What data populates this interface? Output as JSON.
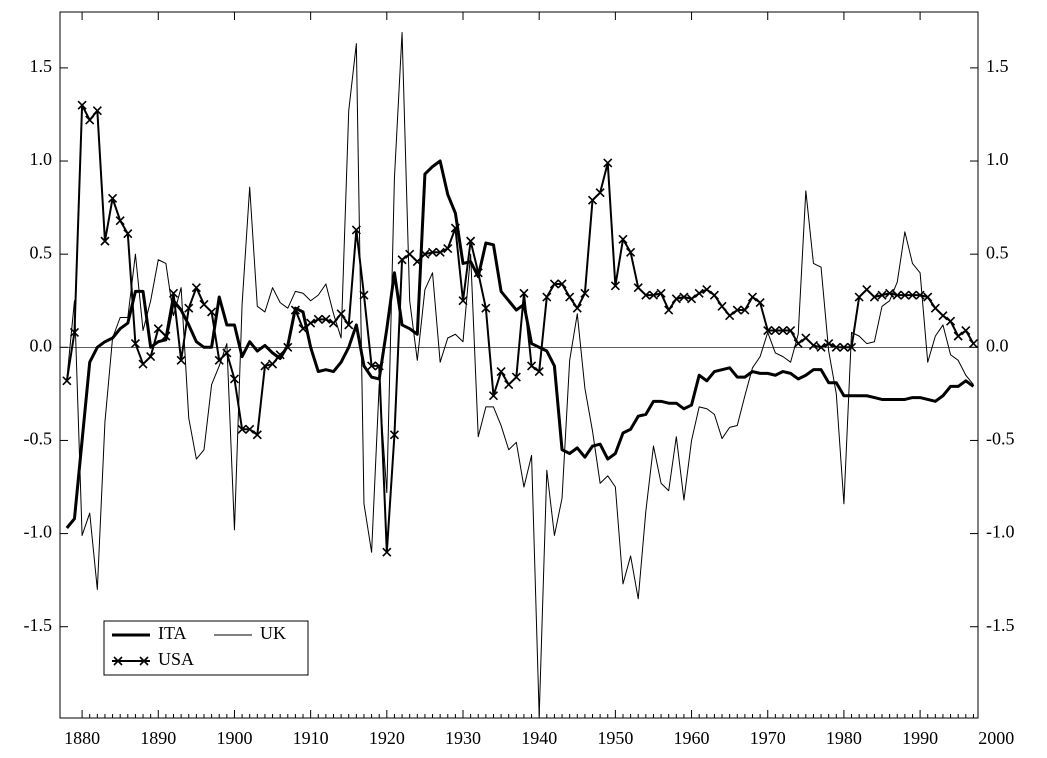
{
  "chart_data": {
    "type": "line",
    "x": [
      1878,
      1879,
      1880,
      1881,
      1882,
      1883,
      1884,
      1885,
      1886,
      1887,
      1888,
      1889,
      1890,
      1891,
      1892,
      1893,
      1894,
      1895,
      1896,
      1897,
      1898,
      1899,
      1900,
      1901,
      1902,
      1903,
      1904,
      1905,
      1906,
      1907,
      1908,
      1909,
      1910,
      1911,
      1912,
      1913,
      1914,
      1915,
      1916,
      1917,
      1918,
      1919,
      1920,
      1921,
      1922,
      1923,
      1924,
      1925,
      1926,
      1927,
      1928,
      1929,
      1930,
      1931,
      1932,
      1933,
      1934,
      1935,
      1936,
      1937,
      1938,
      1939,
      1940,
      1941,
      1942,
      1943,
      1944,
      1945,
      1946,
      1947,
      1948,
      1949,
      1950,
      1951,
      1952,
      1953,
      1954,
      1955,
      1956,
      1957,
      1958,
      1959,
      1960,
      1961,
      1962,
      1963,
      1964,
      1965,
      1966,
      1967,
      1968,
      1969,
      1970,
      1971,
      1972,
      1973,
      1974,
      1975,
      1976,
      1977,
      1978,
      1979,
      1980,
      1981,
      1982,
      1983,
      1984,
      1985,
      1986,
      1987,
      1988,
      1989,
      1990,
      1991,
      1992,
      1993,
      1994,
      1995,
      1996,
      1997
    ],
    "series": [
      {
        "name": "ITA",
        "color": "#000000",
        "linewidth": 3,
        "marker": "none",
        "values": [
          -0.97,
          -0.92,
          -0.5,
          -0.08,
          0.0,
          0.03,
          0.05,
          0.1,
          0.13,
          0.3,
          0.3,
          0.0,
          0.03,
          0.04,
          0.25,
          0.2,
          0.12,
          0.03,
          0.0,
          0.0,
          0.27,
          0.12,
          0.12,
          -0.05,
          0.03,
          -0.02,
          0.01,
          -0.03,
          -0.06,
          0.01,
          0.21,
          0.19,
          0.0,
          -0.13,
          -0.12,
          -0.13,
          -0.08,
          0.0,
          0.12,
          -0.1,
          -0.16,
          -0.17,
          0.1,
          0.4,
          0.12,
          0.1,
          0.07,
          0.93,
          0.97,
          1.0,
          0.82,
          0.72,
          0.45,
          0.46,
          0.38,
          0.56,
          0.55,
          0.3,
          0.25,
          0.2,
          0.23,
          0.02,
          0.0,
          -0.02,
          -0.1,
          -0.55,
          -0.57,
          -0.54,
          -0.59,
          -0.53,
          -0.52,
          -0.6,
          -0.57,
          -0.46,
          -0.44,
          -0.37,
          -0.36,
          -0.29,
          -0.29,
          -0.3,
          -0.3,
          -0.33,
          -0.31,
          -0.15,
          -0.18,
          -0.13,
          -0.12,
          -0.11,
          -0.16,
          -0.16,
          -0.13,
          -0.14,
          -0.14,
          -0.15,
          -0.13,
          -0.14,
          -0.17,
          -0.15,
          -0.12,
          -0.12,
          -0.19,
          -0.19,
          -0.26,
          -0.26,
          -0.26,
          -0.26,
          -0.27,
          -0.28,
          -0.28,
          -0.28,
          -0.28,
          -0.27,
          -0.27,
          -0.28,
          -0.29,
          -0.26,
          -0.21,
          -0.21,
          -0.18,
          -0.21
        ]
      },
      {
        "name": "UK",
        "color": "#000000",
        "linewidth": 1,
        "marker": "none",
        "values": [
          -0.17,
          0.25,
          -1.01,
          -0.89,
          -1.3,
          -0.4,
          0.05,
          0.16,
          0.16,
          0.5,
          0.09,
          0.25,
          0.47,
          0.45,
          0.17,
          0.32,
          -0.38,
          -0.6,
          -0.55,
          -0.2,
          -0.1,
          0.02,
          -0.98,
          0.23,
          0.86,
          0.22,
          0.19,
          0.32,
          0.24,
          0.21,
          0.3,
          0.29,
          0.25,
          0.28,
          0.34,
          0.18,
          0.05,
          1.27,
          1.63,
          -0.84,
          -1.1,
          -0.2,
          -0.78,
          0.91,
          1.69,
          0.25,
          -0.07,
          0.31,
          0.4,
          -0.08,
          0.05,
          0.07,
          0.03,
          0.5,
          -0.48,
          -0.32,
          -0.32,
          -0.42,
          -0.55,
          -0.51,
          -0.75,
          -0.58,
          -1.98,
          -0.66,
          -1.01,
          -0.81,
          -0.07,
          0.18,
          -0.22,
          -0.45,
          -0.73,
          -0.69,
          -0.75,
          -1.27,
          -1.12,
          -1.35,
          -0.88,
          -0.53,
          -0.73,
          -0.77,
          -0.48,
          -0.82,
          -0.5,
          -0.32,
          -0.33,
          -0.36,
          -0.49,
          -0.43,
          -0.42,
          -0.26,
          -0.11,
          -0.05,
          0.08,
          -0.03,
          -0.05,
          -0.08,
          0.07,
          0.84,
          0.45,
          0.43,
          -0.02,
          -0.25,
          -0.84,
          0.08,
          0.06,
          0.02,
          0.03,
          0.22,
          0.25,
          0.35,
          0.62,
          0.45,
          0.4,
          -0.08,
          0.06,
          0.12,
          -0.04,
          -0.07,
          -0.15,
          -0.2
        ]
      },
      {
        "name": "USA",
        "color": "#000000",
        "linewidth": 2,
        "marker": "x",
        "values": [
          -0.18,
          0.08,
          1.3,
          1.22,
          1.27,
          0.57,
          0.8,
          0.68,
          0.61,
          0.02,
          -0.09,
          -0.05,
          0.1,
          0.06,
          0.29,
          -0.07,
          0.21,
          0.32,
          0.23,
          0.19,
          -0.07,
          -0.03,
          -0.17,
          -0.44,
          -0.44,
          -0.47,
          -0.1,
          -0.09,
          -0.04,
          0.0,
          0.2,
          0.1,
          0.13,
          0.15,
          0.15,
          0.13,
          0.18,
          0.12,
          0.63,
          0.28,
          -0.1,
          -0.1,
          -1.1,
          -0.47,
          0.47,
          0.5,
          0.46,
          0.5,
          0.51,
          0.51,
          0.53,
          0.64,
          0.25,
          0.57,
          0.4,
          0.21,
          -0.26,
          -0.13,
          -0.2,
          -0.16,
          0.29,
          -0.1,
          -0.13,
          0.27,
          0.34,
          0.34,
          0.27,
          0.21,
          0.29,
          0.79,
          0.83,
          0.99,
          0.33,
          0.58,
          0.51,
          0.32,
          0.28,
          0.28,
          0.29,
          0.2,
          0.26,
          0.27,
          0.26,
          0.29,
          0.31,
          0.28,
          0.22,
          0.17,
          0.2,
          0.2,
          0.27,
          0.24,
          0.09,
          0.09,
          0.09,
          0.09,
          0.02,
          0.05,
          0.01,
          0.0,
          0.02,
          0.0,
          0.0,
          0.0,
          0.27,
          0.31,
          0.27,
          0.28,
          0.29,
          0.28,
          0.28,
          0.28,
          0.28,
          0.27,
          0.21,
          0.17,
          0.14,
          0.06,
          0.09,
          0.02
        ]
      }
    ],
    "xlim": [
      1877.1,
      1997.6
    ],
    "xticks": [
      1880,
      1890,
      1900,
      1910,
      1920,
      1930,
      1940,
      1950,
      1960,
      1970,
      1980,
      1990,
      2000
    ],
    "ylim": [
      -1.99,
      1.8
    ],
    "yticks": [
      -1.5,
      {
        "value": -1.0,
        "label": "-1.0"
      },
      -0.5,
      {
        "value": 0,
        "label": "0.0"
      },
      0.5,
      {
        "value": 1.0,
        "label": "1.0"
      },
      1.5
    ],
    "right_axis_labels": true,
    "zero_line": true,
    "legend": "lower left"
  }
}
